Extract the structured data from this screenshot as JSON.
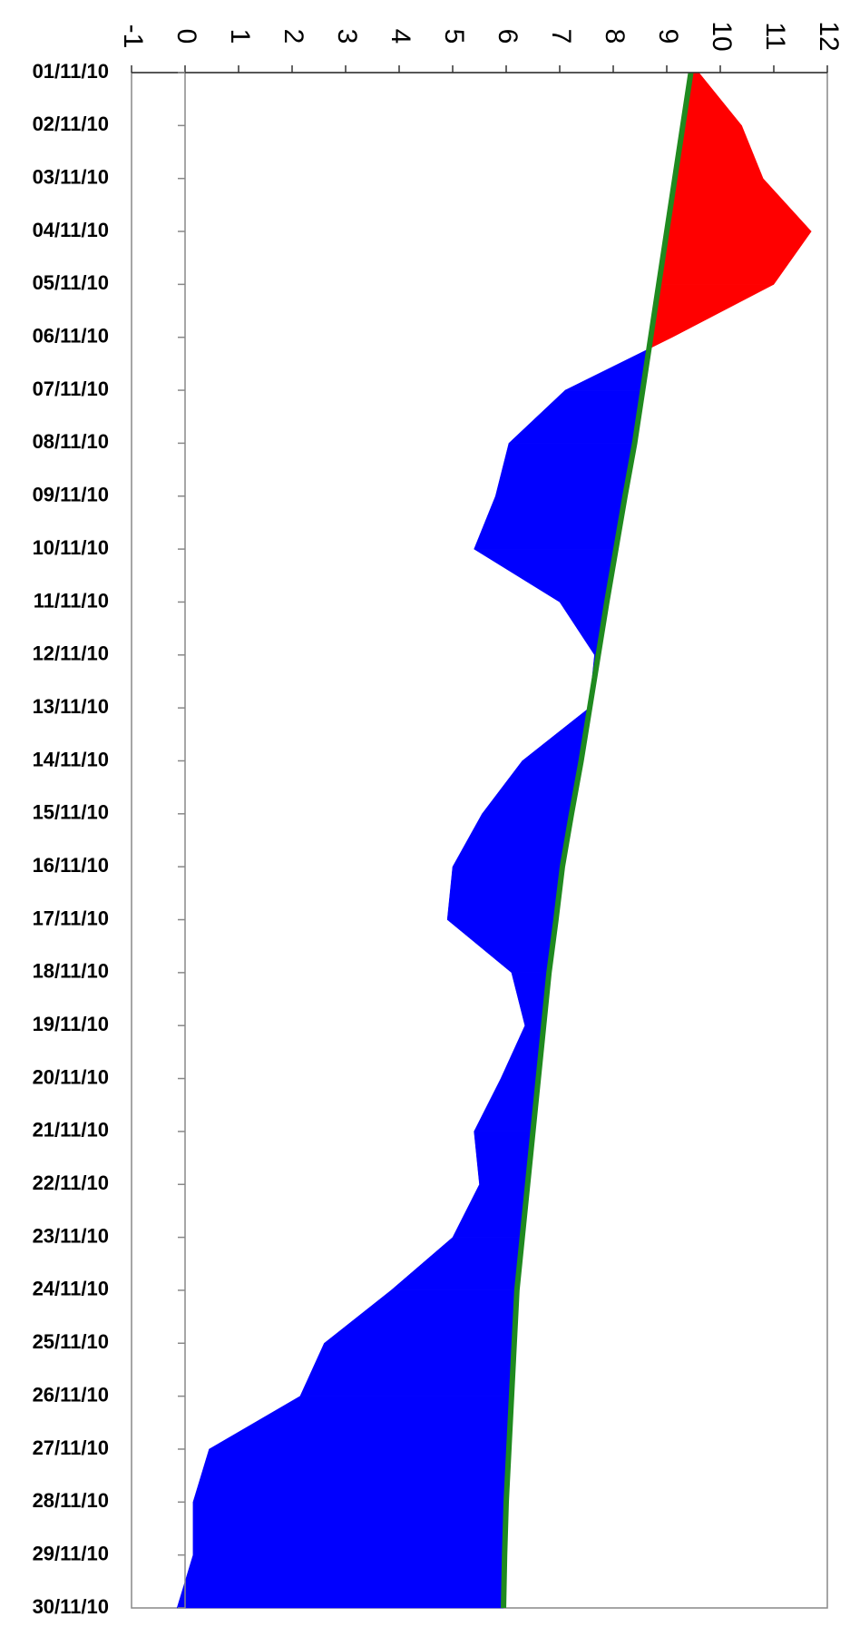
{
  "chart_data": {
    "type": "area-diff",
    "categories": [
      "01/11/10",
      "02/11/10",
      "03/11/10",
      "04/11/10",
      "05/11/10",
      "06/11/10",
      "07/11/10",
      "08/11/10",
      "09/11/10",
      "10/11/10",
      "11/11/10",
      "12/11/10",
      "13/11/10",
      "14/11/10",
      "15/11/10",
      "16/11/10",
      "17/11/10",
      "18/11/10",
      "19/11/10",
      "20/11/10",
      "21/11/10",
      "22/11/10",
      "23/11/10",
      "24/11/10",
      "25/11/10",
      "26/11/10",
      "27/11/10",
      "28/11/10",
      "29/11/10",
      "30/11/10"
    ],
    "series": [
      {
        "values": [
          9.6,
          10.4,
          10.8,
          11.7,
          11.0,
          9.1,
          7.1,
          6.05,
          5.8,
          5.4,
          7.0,
          7.65,
          7.55,
          6.3,
          5.55,
          5.0,
          4.9,
          6.1,
          6.35,
          5.9,
          5.4,
          5.5,
          5.0,
          3.85,
          2.6,
          2.15,
          0.45,
          0.15,
          0.15,
          -0.15
        ],
        "color_above": "#ff0000",
        "color_below": "#0000ff"
      },
      {
        "values": [
          9.45,
          9.3,
          9.15,
          9.0,
          8.85,
          8.7,
          8.55,
          8.4,
          8.22,
          8.05,
          7.88,
          7.72,
          7.56,
          7.4,
          7.22,
          7.05,
          6.93,
          6.8,
          6.7,
          6.6,
          6.5,
          6.4,
          6.3,
          6.2,
          6.15,
          6.1,
          6.05,
          6.0,
          5.97,
          5.95
        ],
        "color": "#1f8a1f"
      }
    ],
    "ylim": [
      -1,
      12
    ],
    "yticks": [
      -1,
      0,
      1,
      2,
      3,
      4,
      5,
      6,
      7,
      8,
      9,
      10,
      11,
      12
    ]
  }
}
